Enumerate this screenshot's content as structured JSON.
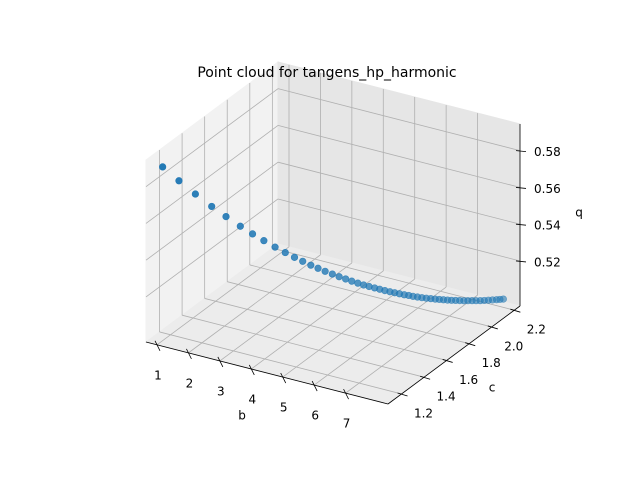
{
  "chart_data": {
    "type": "scatter3d",
    "title": "Point cloud for tangens_hp_harmonic",
    "xlabel": "b",
    "ylabel": "c",
    "zlabel": "q",
    "color": "#1f77b4",
    "grid": true,
    "xlim": [
      0.65,
      8.35
    ],
    "ylim": [
      1.08,
      2.25
    ],
    "zlim": [
      0.4955,
      0.5945
    ],
    "xticks": [
      1,
      2,
      3,
      4,
      5,
      6,
      7
    ],
    "yticks": [
      1.2,
      1.4,
      1.6,
      1.8,
      {
        "value": 2,
        "label": "2.0"
      },
      2.2
    ],
    "zticks": [
      0.52,
      0.54,
      0.56,
      0.58
    ],
    "x": [
      1,
      1.336,
      1.672,
      2.008,
      2.302,
      2.596,
      2.848,
      3.079,
      3.31,
      3.52,
      3.709,
      3.877,
      4.045,
      4.192,
      4.339,
      4.486,
      4.626,
      4.759,
      4.885,
      5.011,
      5.13,
      5.242,
      5.354,
      5.459,
      5.564,
      5.669,
      5.767,
      5.865,
      5.963,
      6.054,
      6.145,
      6.236,
      6.327,
      6.418,
      6.509,
      6.6,
      6.684,
      6.768,
      6.852,
      6.936,
      7.02,
      7.104,
      7.188,
      7.272,
      7.356,
      7.44,
      7.524,
      7.608,
      7.692,
      7.776,
      7.86,
      7.93,
      8
    ],
    "y": [
      1.13,
      1.181,
      1.233,
      1.284,
      1.329,
      1.374,
      1.412,
      1.448,
      1.483,
      1.515,
      1.544,
      1.57,
      1.595,
      1.618,
      1.64,
      1.663,
      1.684,
      1.705,
      1.724,
      1.743,
      1.761,
      1.778,
      1.796,
      1.812,
      1.828,
      1.844,
      1.859,
      1.874,
      1.889,
      1.903,
      1.916,
      1.93,
      1.944,
      1.958,
      1.972,
      1.986,
      1.999,
      2.012,
      2.025,
      2.037,
      2.05,
      2.063,
      2.076,
      2.089,
      2.102,
      2.114,
      2.127,
      2.14,
      2.153,
      2.166,
      2.179,
      2.189,
      2.2
    ],
    "z": [
      0.59,
      0.5816,
      0.5735,
      0.5659,
      0.5596,
      0.5536,
      0.5488,
      0.5445,
      0.5404,
      0.5369,
      0.5338,
      0.5312,
      0.5287,
      0.5266,
      0.5246,
      0.5227,
      0.5209,
      0.5193,
      0.5178,
      0.5164,
      0.5151,
      0.514,
      0.5129,
      0.5119,
      0.5109,
      0.51,
      0.5092,
      0.5084,
      0.5076,
      0.507,
      0.5063,
      0.5057,
      0.5051,
      0.5046,
      0.5041,
      0.5036,
      0.5032,
      0.5028,
      0.5024,
      0.5021,
      0.5018,
      0.5015,
      0.5012,
      0.501,
      0.5008,
      0.5006,
      0.5004,
      0.5003,
      0.5002,
      0.5001,
      0.5,
      0.5,
      0.5
    ]
  }
}
